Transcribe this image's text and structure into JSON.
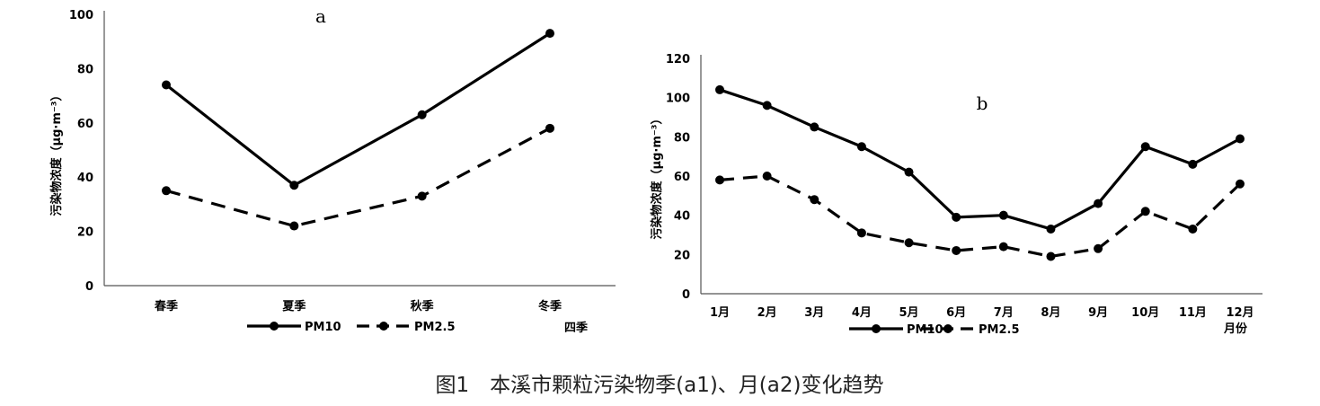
{
  "caption": "图1　本溪市颗粒污染物季(a1)、月(a2)变化趋势",
  "chart_data": [
    {
      "type": "line",
      "panel_label": "a",
      "categories": [
        "春季",
        "夏季",
        "秋季",
        "冬季"
      ],
      "xlabel": "四季",
      "ylabel": "污染物浓度（μg·m⁻³）",
      "ylim": [
        0,
        100
      ],
      "yticks": [
        0,
        20,
        40,
        60,
        80,
        100
      ],
      "legend_position": "bottom",
      "grid": false,
      "series": [
        {
          "name": "PM10",
          "style": "solid",
          "color": "#000000",
          "values": [
            74,
            37,
            63,
            93
          ]
        },
        {
          "name": "PM2.5",
          "style": "dashed",
          "color": "#000000",
          "values": [
            35,
            22,
            33,
            58
          ]
        }
      ]
    },
    {
      "type": "line",
      "panel_label": "b",
      "categories": [
        "1月",
        "2月",
        "3月",
        "4月",
        "5月",
        "6月",
        "7月",
        "8月",
        "9月",
        "10月",
        "11月",
        "12月"
      ],
      "xlabel": "月份",
      "ylabel": "污染物浓度（μg·m⁻³）",
      "ylim": [
        0,
        120
      ],
      "yticks": [
        0,
        20,
        40,
        60,
        80,
        100,
        120
      ],
      "legend_position": "bottom",
      "grid": false,
      "series": [
        {
          "name": "PM10",
          "style": "solid",
          "color": "#000000",
          "values": [
            104,
            96,
            85,
            75,
            62,
            39,
            40,
            33,
            46,
            75,
            66,
            79
          ]
        },
        {
          "name": "PM2.5",
          "style": "dashed",
          "color": "#000000",
          "values": [
            58,
            60,
            48,
            31,
            26,
            22,
            24,
            19,
            23,
            42,
            33,
            56
          ]
        }
      ]
    }
  ]
}
